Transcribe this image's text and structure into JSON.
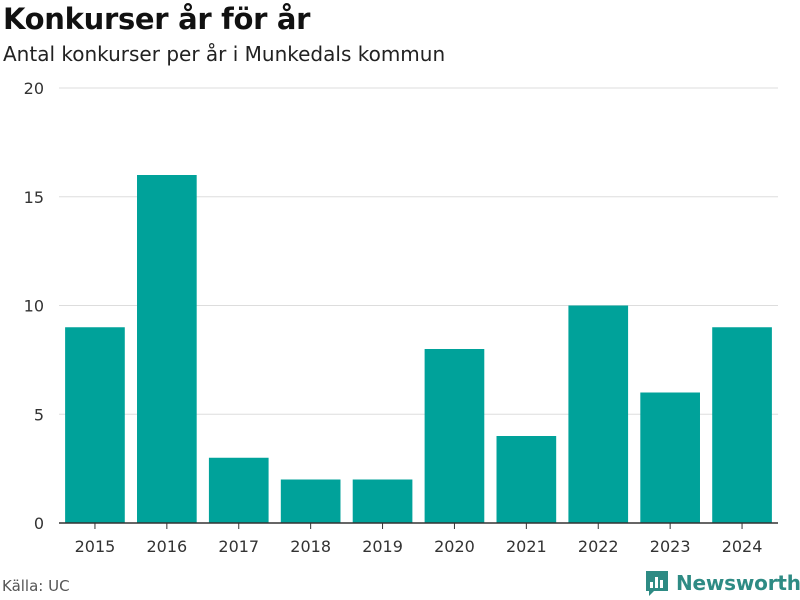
{
  "chart_data": {
    "type": "bar",
    "title": "Konkurser år för år",
    "subtitle": "Antal konkurser per år i Munkedals kommun",
    "categories": [
      "2015",
      "2016",
      "2017",
      "2018",
      "2019",
      "2020",
      "2021",
      "2022",
      "2023",
      "2024"
    ],
    "values": [
      9,
      16,
      3,
      2,
      2,
      8,
      4,
      10,
      6,
      9
    ],
    "yticks": [
      "0",
      "5",
      "10",
      "15",
      "20"
    ],
    "ylim": [
      0,
      20
    ],
    "grid": true,
    "bar_color": "#00a29a"
  },
  "footer": {
    "source": "Källa: UC",
    "brand": "Newsworthy",
    "brand_icon": "newsworthy-logo-icon",
    "brand_color": "#2e8b84"
  }
}
